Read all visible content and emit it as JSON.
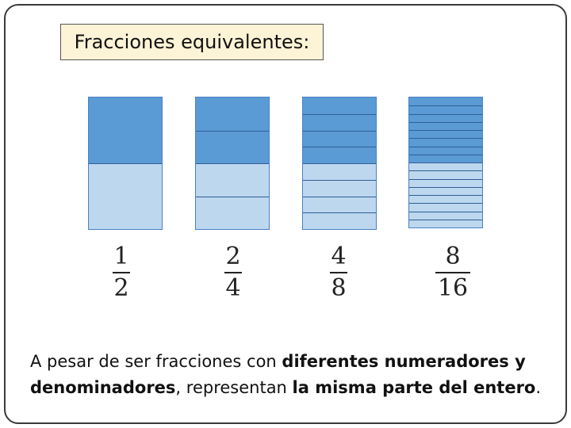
{
  "title": "Fracciones equivalentes:",
  "colors": {
    "filled": "#5b9bd5",
    "empty": "#bdd7ee",
    "title_bg": "#fdf3d6"
  },
  "fractions": [
    {
      "numerator": "1",
      "denominator": "2",
      "parts": 2,
      "shaded": 1
    },
    {
      "numerator": "2",
      "denominator": "4",
      "parts": 4,
      "shaded": 2
    },
    {
      "numerator": "4",
      "denominator": "8",
      "parts": 8,
      "shaded": 4
    },
    {
      "numerator": "8",
      "denominator": "16",
      "parts": 16,
      "shaded": 8
    }
  ],
  "caption": {
    "part1": "A pesar de ser fracciones con ",
    "bold1": "diferentes numeradores y denominadores",
    "part2": ", representan ",
    "bold2": "la misma parte del entero",
    "part3": "."
  }
}
